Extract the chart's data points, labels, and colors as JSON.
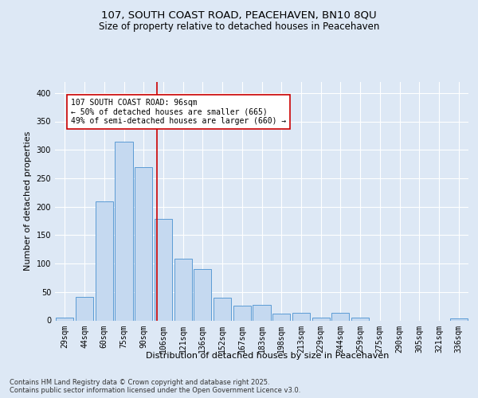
{
  "title_line1": "107, SOUTH COAST ROAD, PEACEHAVEN, BN10 8QU",
  "title_line2": "Size of property relative to detached houses in Peacehaven",
  "xlabel": "Distribution of detached houses by size in Peacehaven",
  "ylabel": "Number of detached properties",
  "categories": [
    "29sqm",
    "44sqm",
    "60sqm",
    "75sqm",
    "90sqm",
    "106sqm",
    "121sqm",
    "136sqm",
    "152sqm",
    "167sqm",
    "183sqm",
    "198sqm",
    "213sqm",
    "229sqm",
    "244sqm",
    "259sqm",
    "275sqm",
    "290sqm",
    "305sqm",
    "321sqm",
    "336sqm"
  ],
  "values": [
    5,
    42,
    210,
    315,
    270,
    178,
    108,
    90,
    40,
    26,
    27,
    12,
    14,
    5,
    13,
    5,
    0,
    0,
    0,
    0,
    4
  ],
  "bar_color": "#c5d9f0",
  "bar_edge_color": "#5b9bd5",
  "vline_x_index": 4.67,
  "vline_color": "#cc0000",
  "annotation_text": "107 SOUTH COAST ROAD: 96sqm\n← 50% of detached houses are smaller (665)\n49% of semi-detached houses are larger (660) →",
  "annotation_box_color": "#ffffff",
  "annotation_box_edge": "#cc0000",
  "ylim": [
    0,
    420
  ],
  "yticks": [
    0,
    50,
    100,
    150,
    200,
    250,
    300,
    350,
    400
  ],
  "footer_text": "Contains HM Land Registry data © Crown copyright and database right 2025.\nContains public sector information licensed under the Open Government Licence v3.0.",
  "background_color": "#dde8f5",
  "plot_background": "#dde8f5",
  "grid_color": "#ffffff",
  "title_fontsize": 9.5,
  "subtitle_fontsize": 8.5,
  "axis_label_fontsize": 8,
  "tick_fontsize": 7,
  "annotation_fontsize": 7,
  "footer_fontsize": 6
}
